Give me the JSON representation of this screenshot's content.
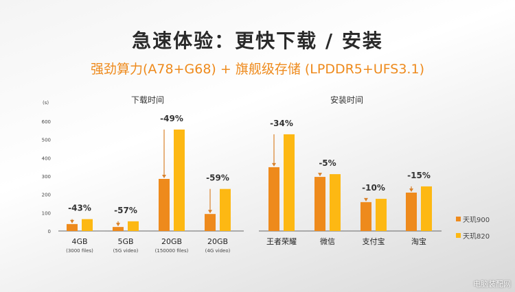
{
  "title": "急速体验：更快下载 / 安装",
  "subtitle": "强劲算力(A78+G68) + 旗舰级存储 (LPDDR5+UFS3.1)",
  "colors": {
    "d900": "#EE8A1C",
    "d820": "#FDB813"
  },
  "legend": [
    "天玑900",
    "天玑820"
  ],
  "watermark": "电脑装配网",
  "chart_data": [
    {
      "type": "bar",
      "title": "下载时间",
      "ylabel": "(s)",
      "ylim": [
        0,
        600
      ],
      "yticks": [
        0,
        100,
        200,
        300,
        400,
        500,
        600
      ],
      "categories": [
        "4GB",
        "5GB",
        "20GB",
        "20GB"
      ],
      "sublabels": [
        "(3000 files)",
        "(5G video)",
        "(150000 files)",
        "(4G video)"
      ],
      "series": [
        {
          "name": "天玑900",
          "values": [
            38,
            22,
            285,
            93
          ]
        },
        {
          "name": "天玑820",
          "values": [
            65,
            53,
            555,
            230
          ]
        }
      ],
      "annotations": [
        "-43%",
        "-57%",
        "-49%",
        "-59%"
      ]
    },
    {
      "type": "bar",
      "title": "安装时间",
      "ylim": [
        0,
        600
      ],
      "categories": [
        "王者荣耀",
        "微信",
        "支付宝",
        "淘宝"
      ],
      "series": [
        {
          "name": "天玑900",
          "values": [
            349,
            296,
            158,
            210
          ]
        },
        {
          "name": "天玑820",
          "values": [
            529,
            311,
            176,
            244
          ]
        }
      ],
      "annotations": [
        "-34%",
        "-5%",
        "-10%",
        "-15%"
      ]
    }
  ]
}
